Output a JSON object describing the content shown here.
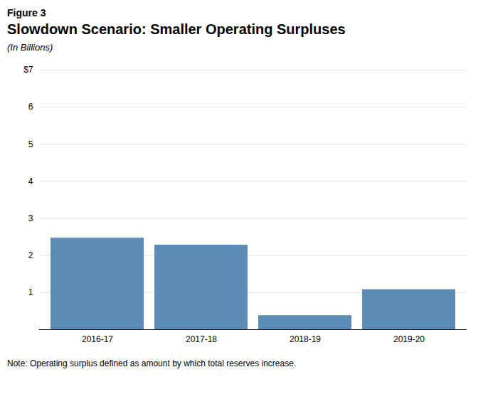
{
  "chart_data": {
    "type": "bar",
    "figure_label": "Figure 3",
    "title": "Slowdown Scenario: Smaller Operating Surpluses",
    "subtitle": "(In Billions)",
    "note": "Note: Operating surplus defined as amount by which total reserves increase.",
    "categories": [
      "2016-17",
      "2017-18",
      "2018-19",
      "2019-20"
    ],
    "values": [
      2.47,
      2.28,
      0.38,
      1.08
    ],
    "color": "#5B8DB8",
    "ylim": [
      0,
      7
    ],
    "yticks": [
      1,
      2,
      3,
      4,
      5,
      6,
      {
        "value": 7,
        "label": "$7"
      }
    ],
    "grid": true
  }
}
